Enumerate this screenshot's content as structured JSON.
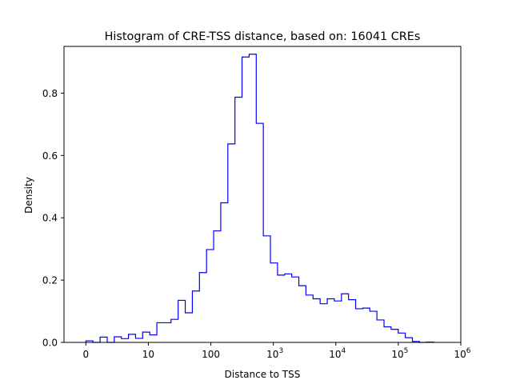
{
  "chart_data": {
    "type": "histogram",
    "title": "Histogram of CRE-TSS distance, based on: 16041 CREs",
    "xlabel": "Distance to TSS",
    "ylabel": "Density",
    "x_scale": "symlog",
    "xlim": [
      -0.35,
      6.0
    ],
    "ylim": [
      0,
      0.95
    ],
    "x_ticks": [
      {
        "pos": 0,
        "base": "0",
        "exp": ""
      },
      {
        "pos": 1,
        "base": "10",
        "exp": ""
      },
      {
        "pos": 2,
        "base": "100",
        "exp": ""
      },
      {
        "pos": 3,
        "base": "10",
        "exp": "3"
      },
      {
        "pos": 4,
        "base": "10",
        "exp": "4"
      },
      {
        "pos": 5,
        "base": "10",
        "exp": "5"
      },
      {
        "pos": 6,
        "base": "10",
        "exp": "6"
      }
    ],
    "y_ticks": [
      {
        "value": 0.0,
        "label": "0.0"
      },
      {
        "value": 0.2,
        "label": "0.2"
      },
      {
        "value": 0.4,
        "label": "0.4"
      },
      {
        "value": 0.6,
        "label": "0.6"
      },
      {
        "value": 0.8,
        "label": "0.8"
      }
    ],
    "bin_start": 0,
    "bin_width": 0.1136,
    "densities": [
      0.005,
      0.0,
      0.017,
      0.0,
      0.018,
      0.012,
      0.026,
      0.013,
      0.033,
      0.024,
      0.063,
      0.063,
      0.074,
      0.135,
      0.095,
      0.165,
      0.224,
      0.298,
      0.358,
      0.448,
      0.637,
      0.787,
      0.916,
      0.925,
      0.703,
      0.342,
      0.255,
      0.216,
      0.22,
      0.21,
      0.182,
      0.152,
      0.14,
      0.124,
      0.14,
      0.133,
      0.156,
      0.137,
      0.108,
      0.11,
      0.1,
      0.072,
      0.05,
      0.042,
      0.03,
      0.015,
      0.003,
      0.0,
      0.001
    ],
    "line_color": "#0000ff",
    "grid": false,
    "legend": "none"
  }
}
